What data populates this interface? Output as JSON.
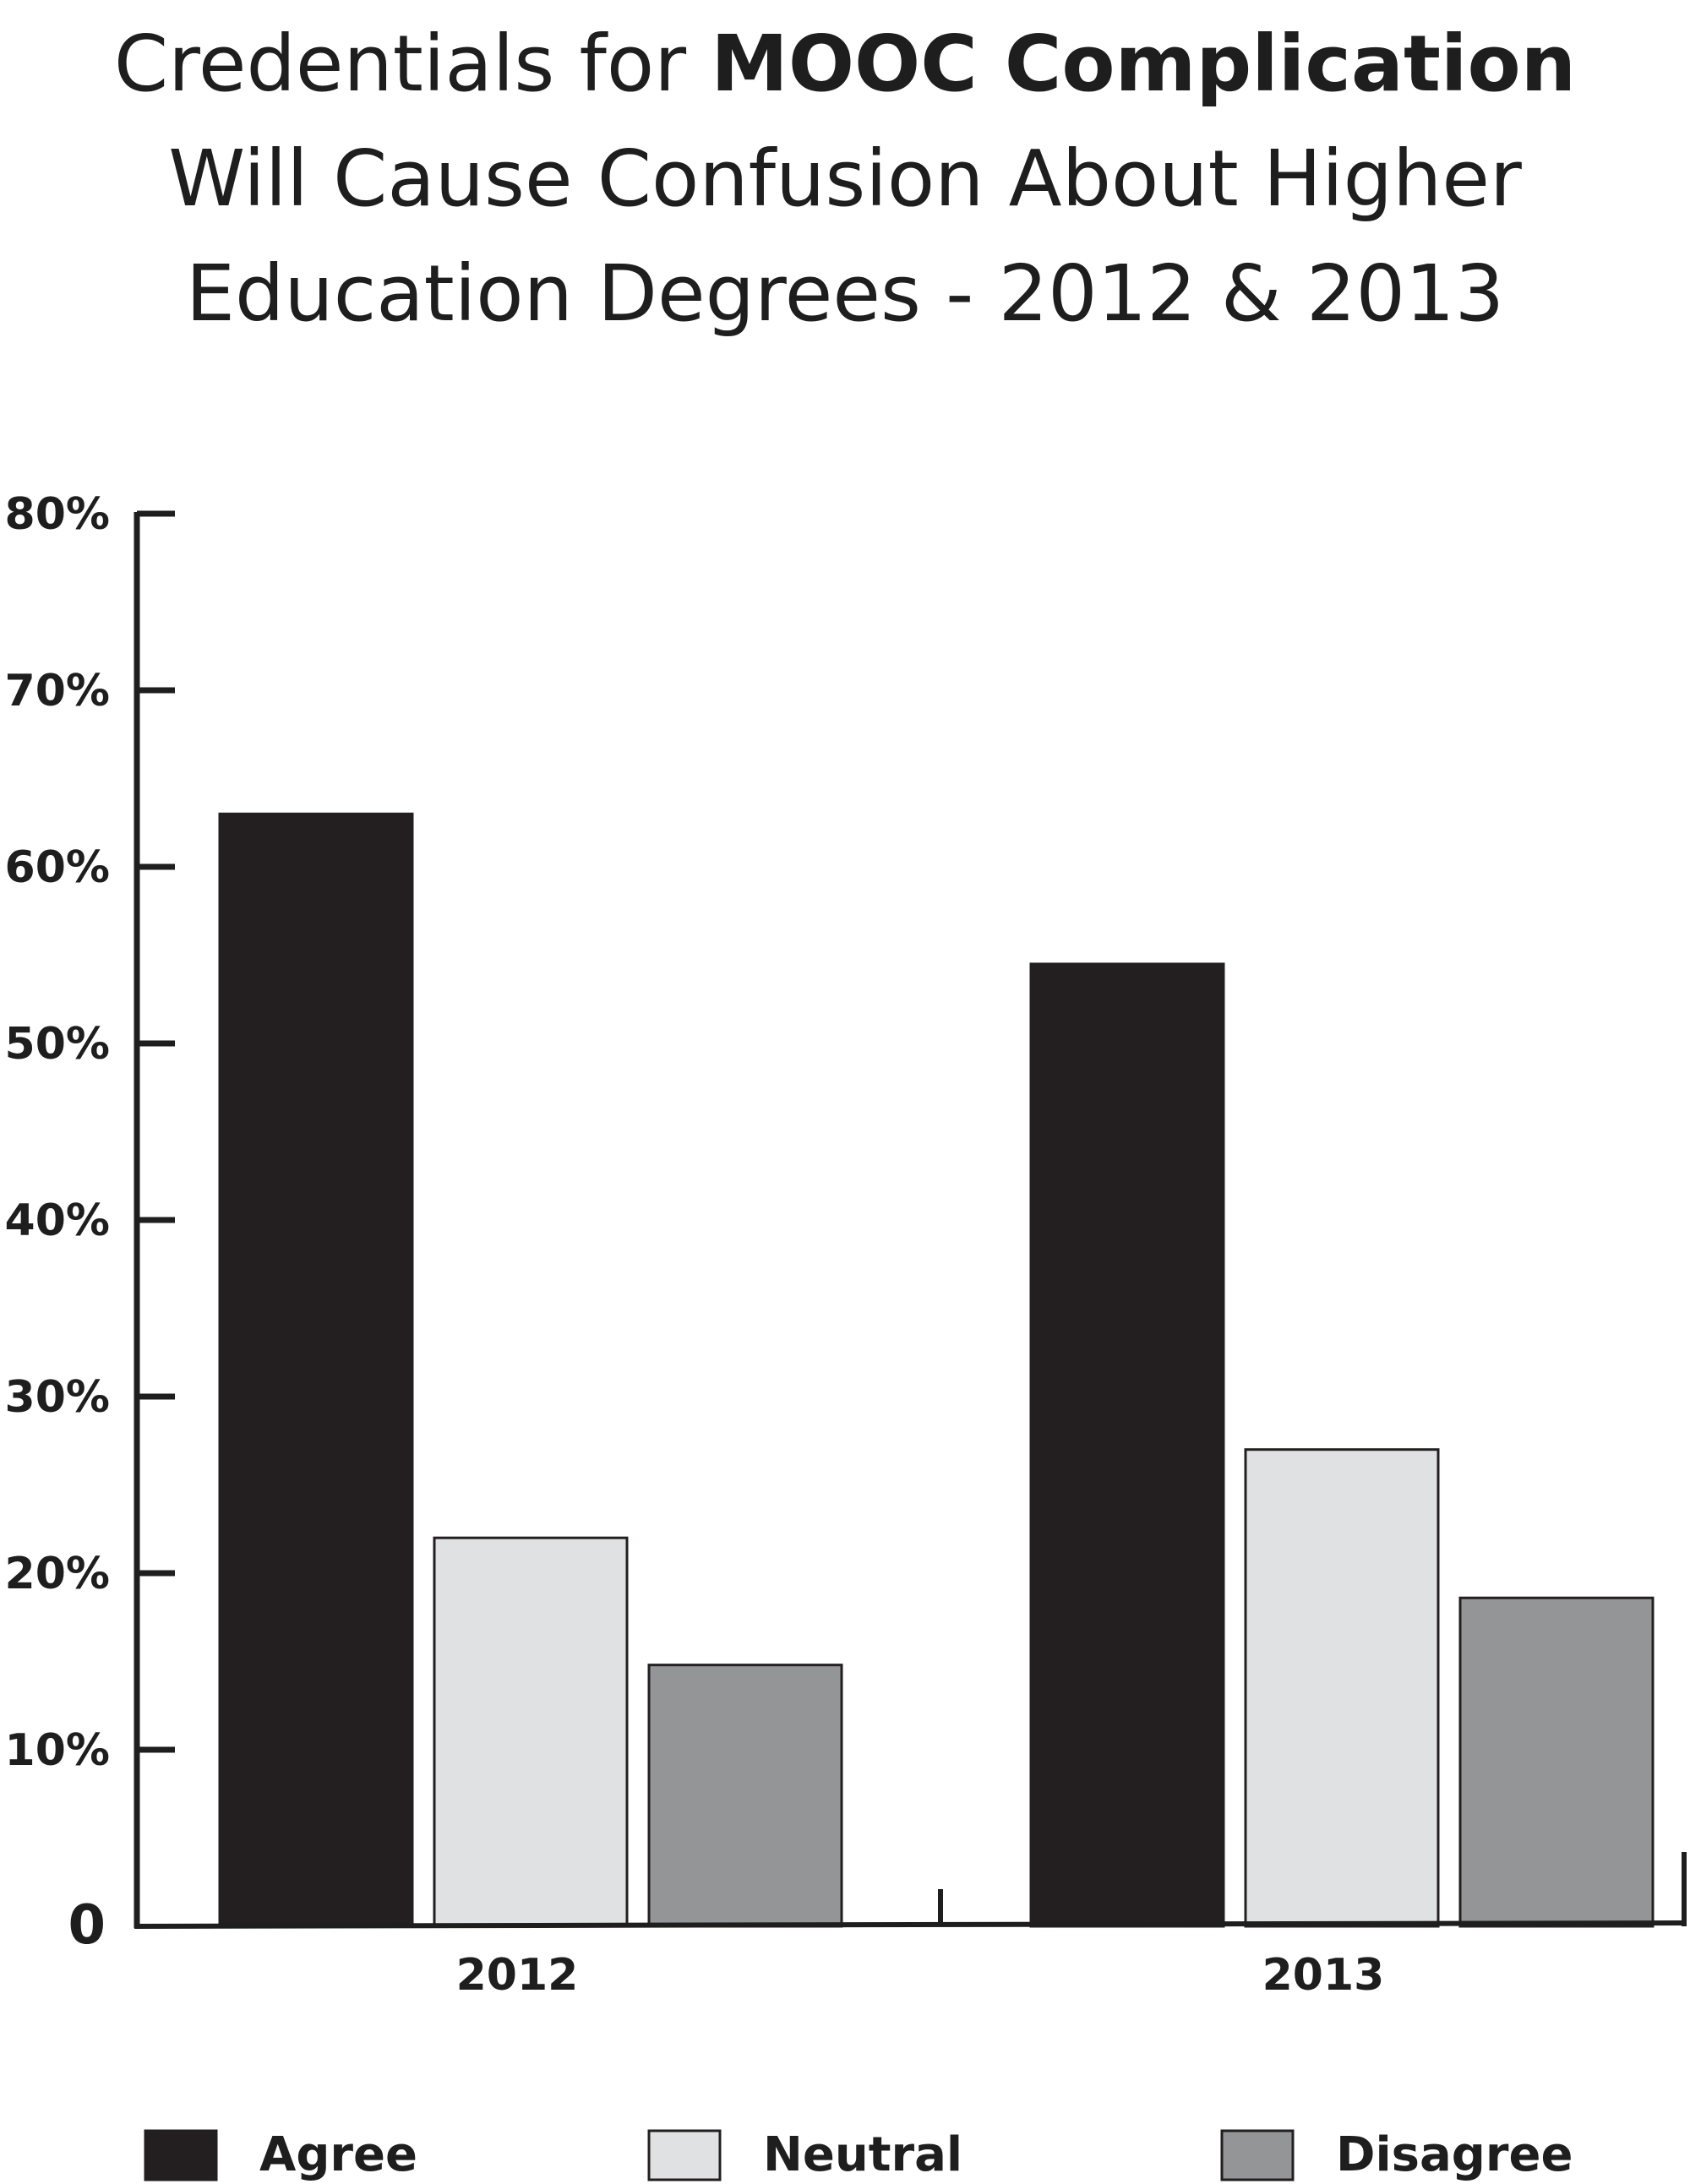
{
  "chart_data": {
    "type": "bar",
    "title_line1_prefix": "Credentials for",
    "title_line1_bold": "MOOC Complication",
    "title_line2": "Will Cause Confusion About Higher",
    "title_line3": "Education Degrees - 2012 & 2013",
    "categories": [
      "2012",
      "2013"
    ],
    "series": [
      {
        "name": "Agree",
        "values": [
          63,
          54.5
        ],
        "color": "#231f20"
      },
      {
        "name": "Neutral",
        "values": [
          22,
          27
        ],
        "color": "#e0e1e2"
      },
      {
        "name": "Disagree",
        "values": [
          14.8,
          18.6
        ],
        "color": "#939597"
      }
    ],
    "yticks": [
      "0",
      "10%",
      "20%",
      "30%",
      "40%",
      "50%",
      "60%",
      "70%",
      "80%"
    ],
    "ylim": [
      0,
      80
    ],
    "grid": false,
    "legend_position": "bottom"
  }
}
